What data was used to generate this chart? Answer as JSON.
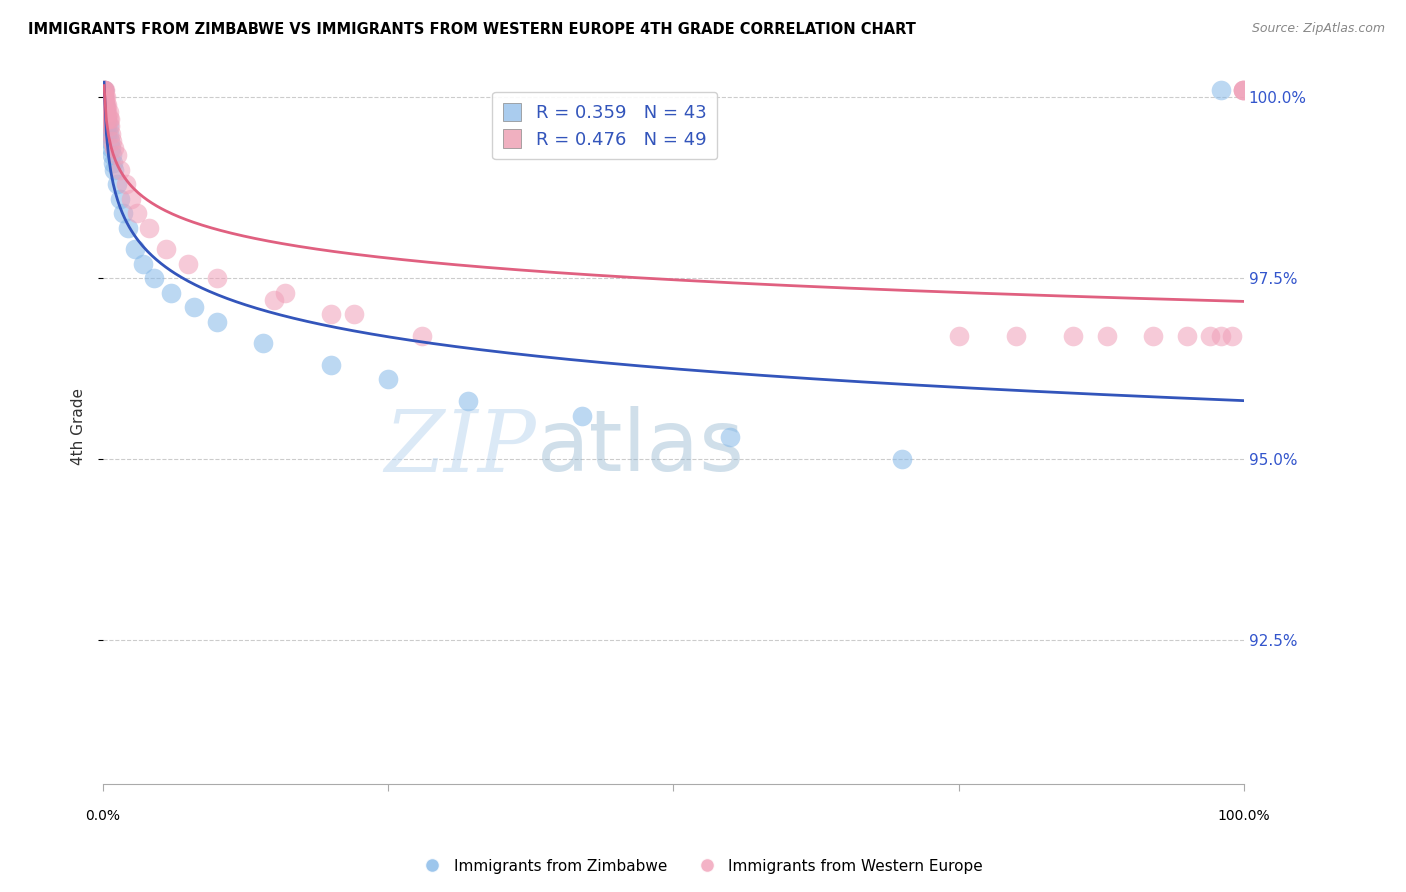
{
  "title": "IMMIGRANTS FROM ZIMBABWE VS IMMIGRANTS FROM WESTERN EUROPE 4TH GRADE CORRELATION CHART",
  "source": "Source: ZipAtlas.com",
  "ylabel": "4th Grade",
  "series1_name": "Immigrants from Zimbabwe",
  "series1_color": "#85b8e8",
  "series1_line_color": "#3355bb",
  "series1_R": 0.359,
  "series1_N": 43,
  "series2_name": "Immigrants from Western Europe",
  "series2_color": "#f0a0b8",
  "series2_line_color": "#e06080",
  "series2_R": 0.476,
  "series2_N": 49,
  "legend_text_color": "#3355bb",
  "watermark_zip": "ZIP",
  "watermark_atlas": "atlas",
  "xlim": [
    0.0,
    1.0
  ],
  "ylim": [
    0.905,
    1.004
  ],
  "yticks": [
    0.925,
    0.95,
    0.975,
    1.0
  ],
  "ytick_labels": [
    "92.5%",
    "95.0%",
    "97.5%",
    "100.0%"
  ],
  "blue_x": [
    0.001,
    0.001,
    0.001,
    0.001,
    0.001,
    0.001,
    0.001,
    0.001,
    0.002,
    0.002,
    0.002,
    0.002,
    0.003,
    0.003,
    0.003,
    0.004,
    0.004,
    0.004,
    0.005,
    0.005,
    0.006,
    0.007,
    0.008,
    0.009,
    0.01,
    0.012,
    0.015,
    0.018,
    0.022,
    0.028,
    0.035,
    0.045,
    0.06,
    0.08,
    0.1,
    0.14,
    0.2,
    0.25,
    0.32,
    0.42,
    0.55,
    0.7,
    0.98
  ],
  "blue_y": [
    1.001,
    1.001,
    1.001,
    1.0,
    1.0,
    0.999,
    0.999,
    0.998,
    0.999,
    0.999,
    0.998,
    0.997,
    0.998,
    0.997,
    0.996,
    0.997,
    0.996,
    0.995,
    0.996,
    0.995,
    0.994,
    0.993,
    0.992,
    0.991,
    0.99,
    0.988,
    0.986,
    0.984,
    0.982,
    0.979,
    0.977,
    0.975,
    0.973,
    0.971,
    0.969,
    0.966,
    0.963,
    0.961,
    0.958,
    0.956,
    0.953,
    0.95,
    1.001
  ],
  "pink_x": [
    0.001,
    0.001,
    0.001,
    0.001,
    0.001,
    0.002,
    0.002,
    0.002,
    0.002,
    0.003,
    0.003,
    0.003,
    0.003,
    0.004,
    0.004,
    0.004,
    0.005,
    0.005,
    0.006,
    0.006,
    0.007,
    0.008,
    0.01,
    0.012,
    0.015,
    0.02,
    0.025,
    0.03,
    0.04,
    0.055,
    0.075,
    0.1,
    0.15,
    0.2,
    0.16,
    0.22,
    0.28,
    0.75,
    0.8,
    0.85,
    0.88,
    0.92,
    0.95,
    0.97,
    0.98,
    0.99,
    0.999,
    0.999,
    0.999
  ],
  "pink_y": [
    1.001,
    1.001,
    1.001,
    1.0,
    1.0,
    1.001,
    1.0,
    0.999,
    0.999,
    1.0,
    0.999,
    0.998,
    0.997,
    0.999,
    0.998,
    0.997,
    0.998,
    0.997,
    0.997,
    0.996,
    0.995,
    0.994,
    0.993,
    0.992,
    0.99,
    0.988,
    0.986,
    0.984,
    0.982,
    0.979,
    0.977,
    0.975,
    0.972,
    0.97,
    0.973,
    0.97,
    0.967,
    0.967,
    0.967,
    0.967,
    0.967,
    0.967,
    0.967,
    0.967,
    0.967,
    0.967,
    1.001,
    1.001,
    1.001
  ]
}
